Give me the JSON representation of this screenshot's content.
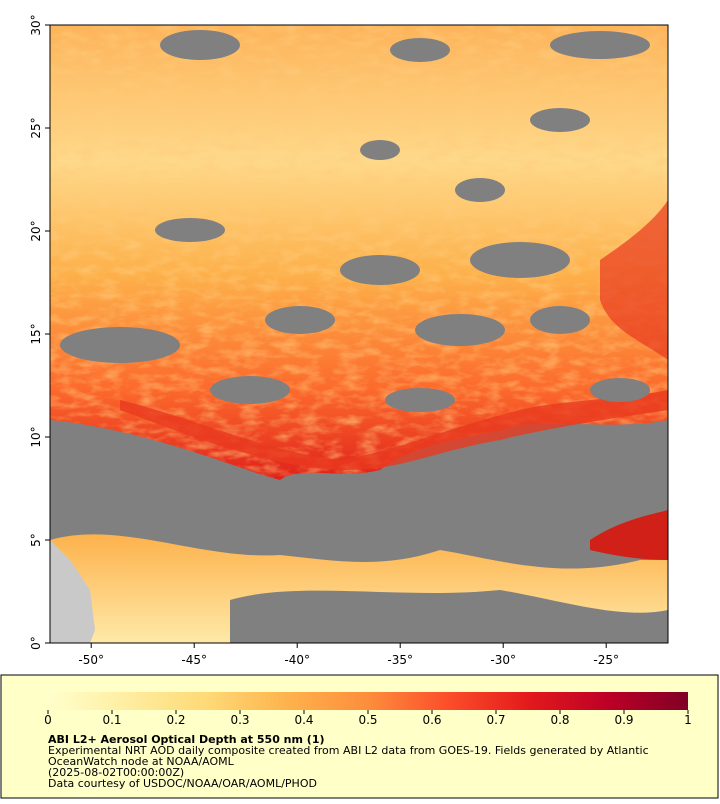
{
  "map": {
    "xlim": [
      -52,
      -22
    ],
    "ylim": [
      0,
      30
    ],
    "xticks": [
      {
        "value": -50,
        "label": "-50°"
      },
      {
        "value": -45,
        "label": "-45°"
      },
      {
        "value": -40,
        "label": "-40°"
      },
      {
        "value": -35,
        "label": "-35°"
      },
      {
        "value": -30,
        "label": "-30°"
      },
      {
        "value": -25,
        "label": "-25°"
      }
    ],
    "yticks": [
      {
        "value": 0,
        "label": "0°"
      },
      {
        "value": 5,
        "label": "5°"
      },
      {
        "value": 10,
        "label": "10°"
      },
      {
        "value": 15,
        "label": "15°"
      },
      {
        "value": 20,
        "label": "20°"
      },
      {
        "value": 25,
        "label": "25°"
      },
      {
        "value": 30,
        "label": "30°"
      }
    ]
  },
  "colorbar": {
    "lim": [
      0,
      1
    ],
    "ticks": [
      0,
      0.1,
      0.2,
      0.3,
      0.4,
      0.5,
      0.6,
      0.7,
      0.8,
      0.9,
      1
    ],
    "colors": [
      "#ffffcc",
      "#ffeda0",
      "#fed976",
      "#feb24c",
      "#fd8d3c",
      "#fc4e2a",
      "#e31a1c",
      "#bd0026",
      "#800026"
    ]
  },
  "caption": {
    "title": "ABI L2+ Aerosol Optical Depth at 550 nm (1)",
    "lines": [
      "Experimental NRT AOD daily composite created from ABI L2 data from GOES-19. Fields generated by Atlantic",
      "OceanWatch node at NOAA/AOML",
      "(2025-08-02T00:00:00Z)",
      "Data courtesy of USDOC/NOAA/OAR/AOML/PHOD"
    ]
  }
}
